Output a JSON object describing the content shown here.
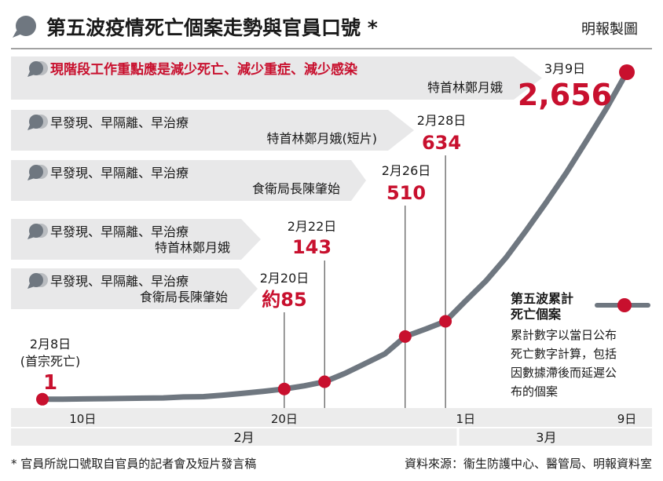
{
  "header": {
    "title": "第五波疫情死亡個案走勢與官員口號 *",
    "credit": "明報製圖"
  },
  "slogans": [
    {
      "text": "現階段工作重點應是減少死亡、減少重症、減少感染",
      "speaker": "特首林鄭月娥"
    },
    {
      "text": "早發現、早隔離、早治療",
      "speaker": "特首林鄭月娥(短片)"
    },
    {
      "text": "早發現、早隔離、早治療",
      "speaker": "食衛局長陳肇始"
    },
    {
      "text": "早發現、早隔離、早治療",
      "speaker": "特首林鄭月娥"
    },
    {
      "text": "早發現、早隔離、早治療",
      "speaker": "食衛局長陳肇始"
    }
  ],
  "legend": {
    "title_line1": "第五波累計",
    "title_line2": "死亡個案",
    "note_lines": [
      "累計數字以當日公布",
      "死亡數字計算，包括",
      "因數據滯後而延遲公",
      "布的個案"
    ]
  },
  "footer": {
    "note": "* 官員所說口號取自官員的記者會及短片發言稿",
    "source": "資料來源：衞生防護中心、醫管局、明報資料室"
  },
  "colors": {
    "line": "#6f7780",
    "highlight": "#c8102e",
    "bubble_bg": "#e8e8e9",
    "axis_bg": "#ececec",
    "text": "#1a1a1a"
  },
  "chart_data": {
    "type": "line",
    "x_unit": "day (2022)",
    "x": [
      "2022-02-08",
      "2022-02-09",
      "2022-02-10",
      "2022-02-11",
      "2022-02-12",
      "2022-02-13",
      "2022-02-14",
      "2022-02-15",
      "2022-02-16",
      "2022-02-17",
      "2022-02-18",
      "2022-02-19",
      "2022-02-20",
      "2022-02-21",
      "2022-02-22",
      "2022-02-23",
      "2022-02-24",
      "2022-02-25",
      "2022-02-26",
      "2022-02-27",
      "2022-02-28",
      "2022-03-01",
      "2022-03-02",
      "2022-03-03",
      "2022-03-04",
      "2022-03-05",
      "2022-03-06",
      "2022-03-07",
      "2022-03-08",
      "2022-03-09"
    ],
    "series": [
      {
        "values": [
          1,
          2,
          4,
          6,
          8,
          10,
          12,
          20,
          22,
          35,
          50,
          66,
          85,
          110,
          143,
          210,
          290,
          370,
          510,
          570,
          634,
          800,
          960,
          1150,
          1370,
          1600,
          1840,
          2100,
          2365,
          2656
        ]
      }
    ],
    "highlighted_points": [
      {
        "date": "2月8日",
        "sublabel": "(首宗死亡)",
        "value_label": "1",
        "index": 0
      },
      {
        "date": "2月20日",
        "value_label": "約85",
        "index": 12
      },
      {
        "date": "2月22日",
        "value_label": "143",
        "index": 14
      },
      {
        "date": "2月26日",
        "value_label": "510",
        "index": 18
      },
      {
        "date": "2月28日",
        "value_label": "634",
        "index": 20
      },
      {
        "date": "3月9日",
        "value_label": "2,656",
        "index": 29
      }
    ],
    "x_ticks": [
      {
        "label": "10日",
        "index": 2
      },
      {
        "label": "20日",
        "index": 12
      },
      {
        "label": "1日",
        "index": 21
      },
      {
        "label": "9日",
        "index": 29
      }
    ],
    "months": [
      {
        "label": "2月",
        "start": 0,
        "end": 20
      },
      {
        "label": "3月",
        "start": 21,
        "end": 29
      }
    ],
    "ylim": [
      0,
      2656
    ],
    "grid": false,
    "legend_position": "right"
  }
}
